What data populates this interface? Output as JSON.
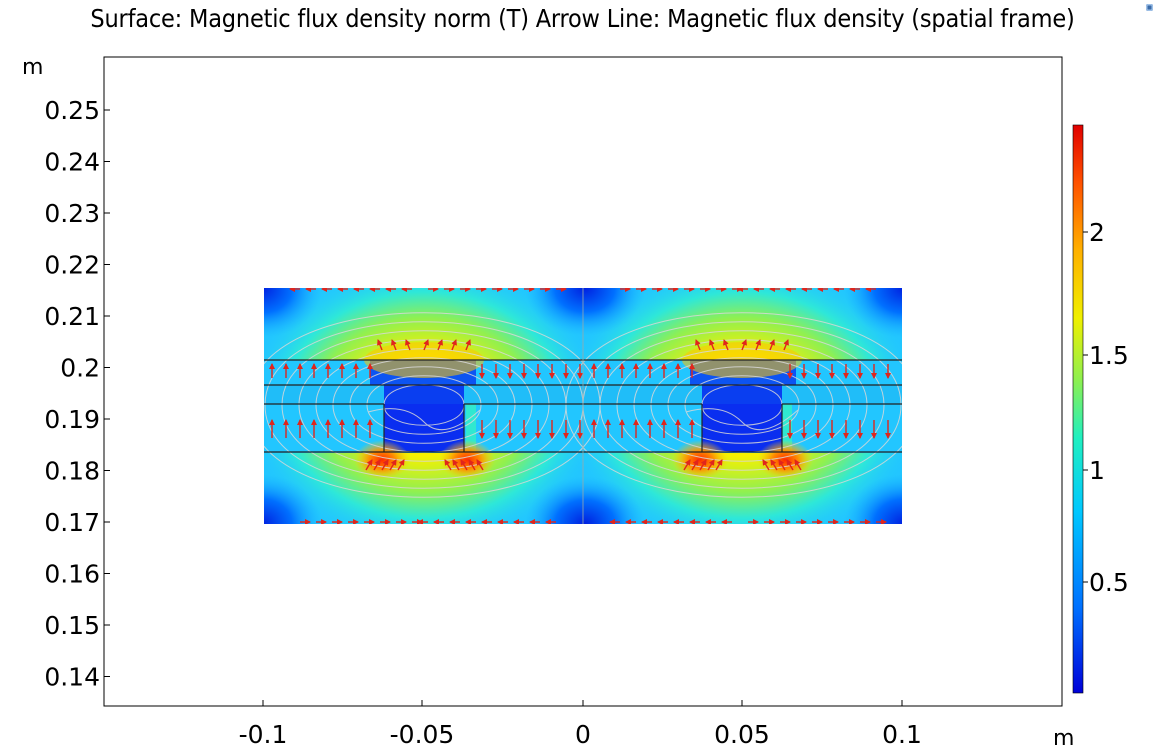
{
  "plot": {
    "title": "Surface: Magnetic flux density norm (T)  Arrow Line: Magnetic flux density (spatial frame)",
    "x_unit": "m",
    "y_unit": "m",
    "x_ticks": [
      "-0.1",
      "-0.05",
      "0",
      "0.05",
      "0.1"
    ],
    "y_ticks": [
      "0.25",
      "0.24",
      "0.23",
      "0.22",
      "0.21",
      "0.2",
      "0.19",
      "0.18",
      "0.17",
      "0.16",
      "0.15",
      "0.14"
    ],
    "colorbar_ticks": [
      "2",
      "1.5",
      "1",
      "0.5"
    ],
    "colormap": "rainbow",
    "colorbar_range": [
      0.0,
      2.45
    ],
    "x_range": [
      -0.1,
      0.1
    ],
    "y_range": [
      0.169,
      0.215
    ],
    "colors": {
      "arrow": "#e0251c",
      "contour": "#cfcfcf",
      "boundary": "#222222",
      "axes": "#000000"
    }
  }
}
